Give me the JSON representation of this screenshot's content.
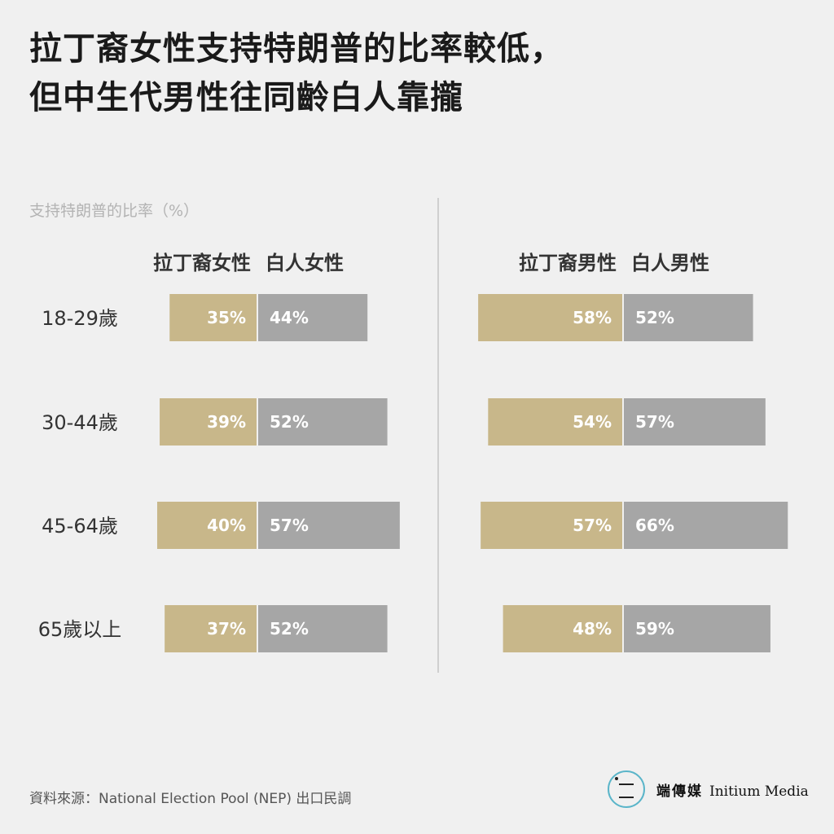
{
  "title": {
    "line1": "拉丁裔女性支持特朗普的比率較低，",
    "line2": "但中生代男性往同齡白人靠攏"
  },
  "source": "資料來源：National Election Pool (NEP) 出口民調",
  "logo": {
    "zh": "端傳媒",
    "en": "Initium Media"
  },
  "colors": {
    "latino": "#c8b78a",
    "white": "#a6a6a6",
    "background": "#f0f0f0"
  },
  "chart_data": {
    "type": "bar",
    "ylabel": "支持特朗普的比率（%）",
    "categories": [
      "18-29歲",
      "30-44歲",
      "45-64歲",
      "65歲以上"
    ],
    "panels": [
      {
        "series": [
          {
            "name": "拉丁裔女性",
            "values": [
              35,
              39,
              40,
              37
            ]
          },
          {
            "name": "白人女性",
            "values": [
              44,
              52,
              57,
              52
            ]
          }
        ]
      },
      {
        "series": [
          {
            "name": "拉丁裔男性",
            "values": [
              58,
              54,
              57,
              48
            ]
          },
          {
            "name": "白人男性",
            "values": [
              52,
              57,
              66,
              59
            ]
          }
        ]
      }
    ]
  }
}
